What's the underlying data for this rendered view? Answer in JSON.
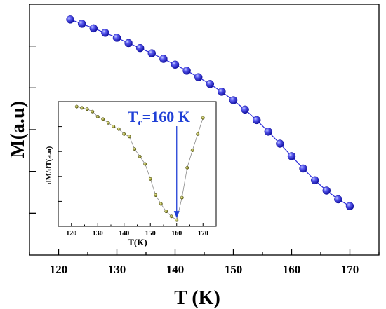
{
  "chart_data": [
    {
      "type": "line",
      "xlabel": "T (K)",
      "ylabel": "M(a.u)",
      "xlim": [
        115,
        175
      ],
      "ylim": [
        0,
        1
      ],
      "x_ticks": [
        "120",
        "130",
        "140",
        "150",
        "160",
        "170"
      ],
      "y_ticks_labeled": false,
      "grid": false,
      "marker": "sphere",
      "color": "#2b2bd9",
      "series": [
        {
          "x": [
            122,
            124,
            126,
            128,
            130,
            132,
            134,
            136,
            138,
            140,
            142,
            144,
            146,
            148,
            150,
            152,
            154,
            156,
            158,
            160,
            162,
            164,
            166,
            168,
            170
          ],
          "values": [
            0.939,
            0.922,
            0.904,
            0.886,
            0.866,
            0.845,
            0.825,
            0.804,
            0.782,
            0.759,
            0.735,
            0.709,
            0.682,
            0.651,
            0.617,
            0.58,
            0.538,
            0.492,
            0.444,
            0.394,
            0.345,
            0.298,
            0.257,
            0.222,
            0.195
          ]
        }
      ]
    },
    {
      "type": "line",
      "xlabel": "T(K)",
      "ylabel": "dM/dT(a.u)",
      "xlim": [
        115,
        175
      ],
      "ylim": [
        0,
        1
      ],
      "x_ticks": [
        "120",
        "130",
        "140",
        "150",
        "160",
        "170"
      ],
      "y_ticks_labeled": false,
      "grid": false,
      "marker": "dot",
      "color": "#c8c832",
      "series": [
        {
          "x": [
            122,
            124,
            126,
            128,
            130,
            132,
            134,
            136,
            138,
            140,
            142,
            144,
            146,
            148,
            150,
            152,
            154,
            156,
            158,
            160,
            162,
            164,
            166,
            168,
            170
          ],
          "values": [
            0.96,
            0.95,
            0.94,
            0.92,
            0.88,
            0.86,
            0.83,
            0.8,
            0.78,
            0.74,
            0.72,
            0.62,
            0.56,
            0.5,
            0.38,
            0.25,
            0.18,
            0.12,
            0.08,
            0.05,
            0.23,
            0.47,
            0.61,
            0.74,
            0.87
          ]
        }
      ],
      "annotation": {
        "text_main": "T",
        "text_sub": "c",
        "text_rest": "=160 K",
        "x": 160,
        "color": "#1f3fd6"
      }
    }
  ]
}
